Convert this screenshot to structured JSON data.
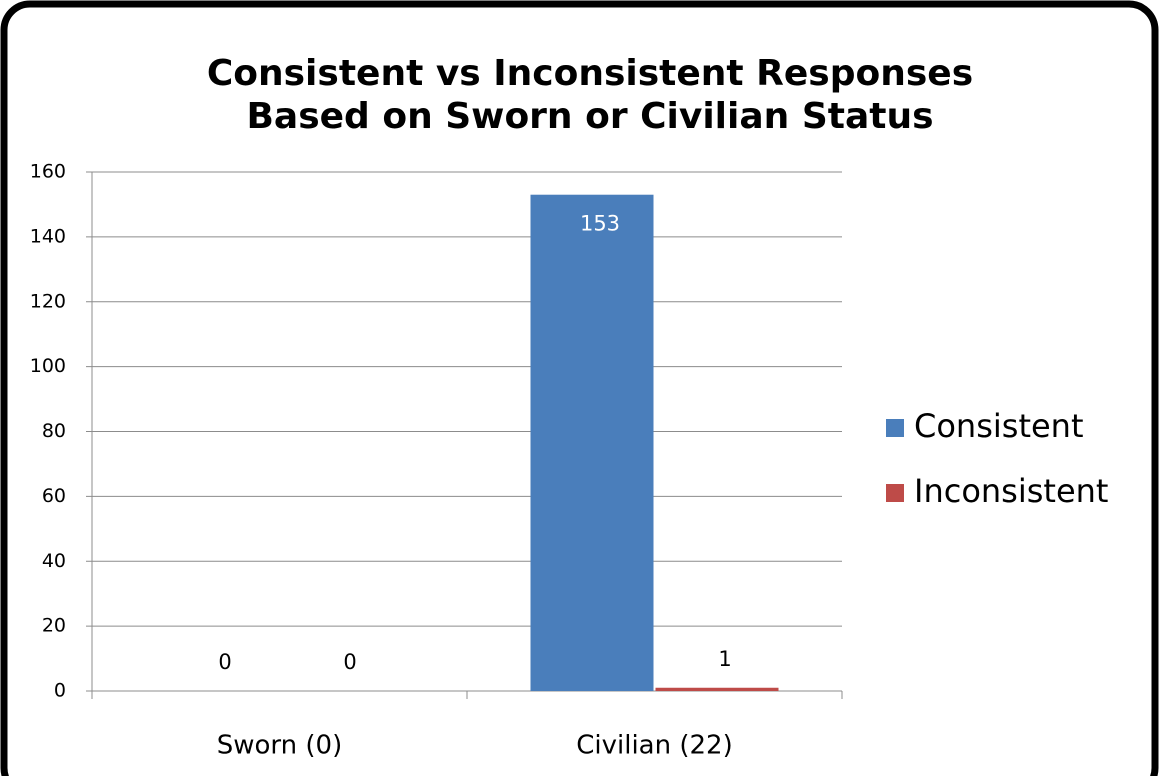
{
  "chart_data": {
    "type": "bar",
    "title": [
      "Consistent vs Inconsistent Responses",
      "Based on Sworn or Civilian Status"
    ],
    "categories": [
      "Sworn (0)",
      "Civilian (22)"
    ],
    "series": [
      {
        "name": "Consistent",
        "color": "#4a7ebb",
        "values": [
          0,
          153
        ]
      },
      {
        "name": "Inconsistent",
        "color": "#be4b48",
        "values": [
          0,
          1
        ]
      }
    ],
    "ylim": [
      0,
      160
    ],
    "yticks": [
      0,
      20,
      40,
      60,
      80,
      100,
      120,
      140,
      160
    ],
    "grid": true,
    "legend": "right",
    "data_labels": true
  }
}
